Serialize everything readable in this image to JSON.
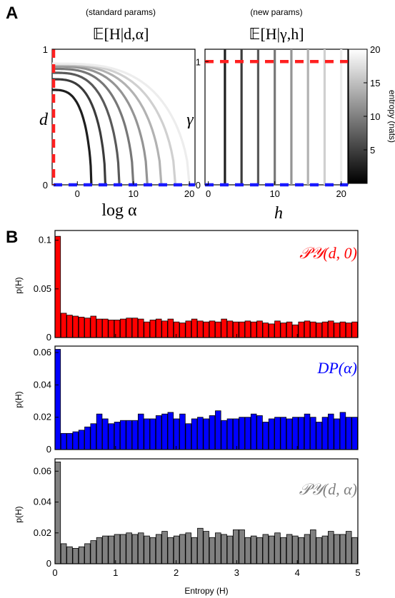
{
  "panel_a": {
    "letter": "A",
    "left": {
      "subtitle": "(standard params)",
      "title": "𝔼[H|d,α]",
      "xlabel": "log α",
      "ylabel": "d",
      "xticks": [
        "0",
        "10",
        "20"
      ],
      "yticks": [
        "0",
        "1"
      ]
    },
    "right": {
      "subtitle": "(new params)",
      "title": "𝔼[H|γ,h]",
      "xlabel": "h",
      "ylabel": "γ",
      "xticks": [
        "0",
        "10",
        "20"
      ],
      "yticks": [
        "0",
        "1"
      ]
    },
    "colorbar": {
      "label": "entropy (nats)",
      "ticks": [
        "5",
        "10",
        "15",
        "20"
      ]
    }
  },
  "panel_b": {
    "letter": "B",
    "xlabel": "Entropy (H)",
    "xticks": [
      "0",
      "1",
      "2",
      "3",
      "4",
      "5"
    ]
  },
  "colors": {
    "red": "#ff0000",
    "blue": "#0000ff",
    "gray": "#808080",
    "dashed_red": "#ff2020",
    "dashed_blue": "#1a1aff"
  },
  "chart_data": [
    {
      "type": "line",
      "title": "𝔼[H|d,α]",
      "subtitle": "(standard params)",
      "xlabel": "log α",
      "ylabel": "d",
      "xlim": [
        -4.5,
        21
      ],
      "ylim": [
        0,
        1
      ],
      "levels": [
        2.5,
        5,
        7.5,
        10,
        12.5,
        15,
        17.5,
        20
      ],
      "lines": [
        {
          "name": "d=0 (DP)",
          "color": "#1a1aff",
          "style": "dashed"
        },
        {
          "name": "α=0 axis",
          "color": "#ff2020",
          "style": "dashed"
        }
      ]
    },
    {
      "type": "line",
      "title": "𝔼[H|γ,h]",
      "subtitle": "(new params)",
      "xlabel": "h",
      "ylabel": "γ",
      "xlim": [
        -0.5,
        21
      ],
      "ylim": [
        0,
        1.1
      ],
      "levels": [
        2.5,
        5,
        7.5,
        10,
        12.5,
        15,
        17.5,
        20
      ],
      "lines": [
        {
          "name": "γ=1",
          "color": "#ff2020",
          "style": "dashed"
        },
        {
          "name": "γ=0",
          "color": "#1a1aff",
          "style": "dashed"
        }
      ]
    },
    {
      "type": "bar",
      "label": "𝒫𝒴(d, 0)",
      "ylabel": "p(H)",
      "xlim": [
        0,
        5
      ],
      "ylim": [
        0,
        0.11
      ],
      "yticks": [
        "0",
        "0.05",
        "0.1"
      ],
      "color": "#ff0000",
      "values": [
        0.104,
        0.025,
        0.023,
        0.022,
        0.021,
        0.02,
        0.022,
        0.019,
        0.019,
        0.018,
        0.018,
        0.019,
        0.02,
        0.02,
        0.019,
        0.016,
        0.018,
        0.019,
        0.017,
        0.019,
        0.016,
        0.015,
        0.017,
        0.019,
        0.017,
        0.016,
        0.017,
        0.016,
        0.019,
        0.017,
        0.016,
        0.016,
        0.017,
        0.016,
        0.017,
        0.015,
        0.014,
        0.017,
        0.015,
        0.016,
        0.013,
        0.016,
        0.017,
        0.016,
        0.015,
        0.016,
        0.017,
        0.015,
        0.016,
        0.015,
        0.016
      ]
    },
    {
      "type": "bar",
      "label": "DP(α)",
      "ylabel": "p(H)",
      "xlim": [
        0,
        5
      ],
      "ylim": [
        0,
        0.064
      ],
      "yticks": [
        "0",
        "0.02",
        "0.04",
        "0.06"
      ],
      "color": "#0000ff",
      "values": [
        0.062,
        0.01,
        0.01,
        0.011,
        0.012,
        0.014,
        0.016,
        0.022,
        0.019,
        0.016,
        0.017,
        0.018,
        0.018,
        0.018,
        0.022,
        0.019,
        0.019,
        0.021,
        0.022,
        0.023,
        0.019,
        0.022,
        0.016,
        0.019,
        0.02,
        0.019,
        0.021,
        0.024,
        0.018,
        0.019,
        0.019,
        0.02,
        0.02,
        0.022,
        0.021,
        0.017,
        0.019,
        0.02,
        0.02,
        0.019,
        0.02,
        0.02,
        0.022,
        0.02,
        0.017,
        0.02,
        0.022,
        0.019,
        0.023,
        0.02,
        0.02
      ]
    },
    {
      "type": "bar",
      "label": "𝒫𝒴(d, α)",
      "ylabel": "p(H)",
      "xlim": [
        0,
        5
      ],
      "ylim": [
        0,
        0.068
      ],
      "yticks": [
        "0",
        "0.02",
        "0.04",
        "0.06"
      ],
      "color": "#808080",
      "values": [
        0.066,
        0.013,
        0.011,
        0.01,
        0.011,
        0.013,
        0.015,
        0.017,
        0.018,
        0.018,
        0.019,
        0.019,
        0.02,
        0.019,
        0.02,
        0.018,
        0.017,
        0.019,
        0.021,
        0.017,
        0.018,
        0.019,
        0.02,
        0.017,
        0.023,
        0.021,
        0.017,
        0.02,
        0.019,
        0.018,
        0.022,
        0.022,
        0.017,
        0.018,
        0.017,
        0.019,
        0.018,
        0.02,
        0.017,
        0.019,
        0.018,
        0.017,
        0.019,
        0.022,
        0.017,
        0.018,
        0.021,
        0.019,
        0.019,
        0.021,
        0.017
      ]
    }
  ]
}
